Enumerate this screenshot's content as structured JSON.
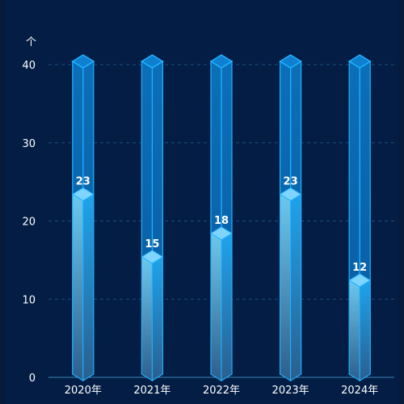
{
  "chart_data": {
    "type": "bar",
    "categories": [
      "2020年",
      "2021年",
      "2022年",
      "2023年",
      "2024年"
    ],
    "values": [
      23,
      15,
      18,
      23,
      12
    ],
    "capacity": 40,
    "ylabel": "个",
    "ylim": [
      0,
      40
    ],
    "yticks": [
      0,
      10,
      20,
      30,
      40
    ],
    "grid": true,
    "colors": {
      "background": "#031d45",
      "grid": "#1d4d7a",
      "axis": "#3f86b8",
      "outline": "#1fb3ff",
      "fill_top": "#1fa3ec",
      "fill_bottom": "#2a5f8f",
      "cap": "#7fd4ff"
    }
  }
}
